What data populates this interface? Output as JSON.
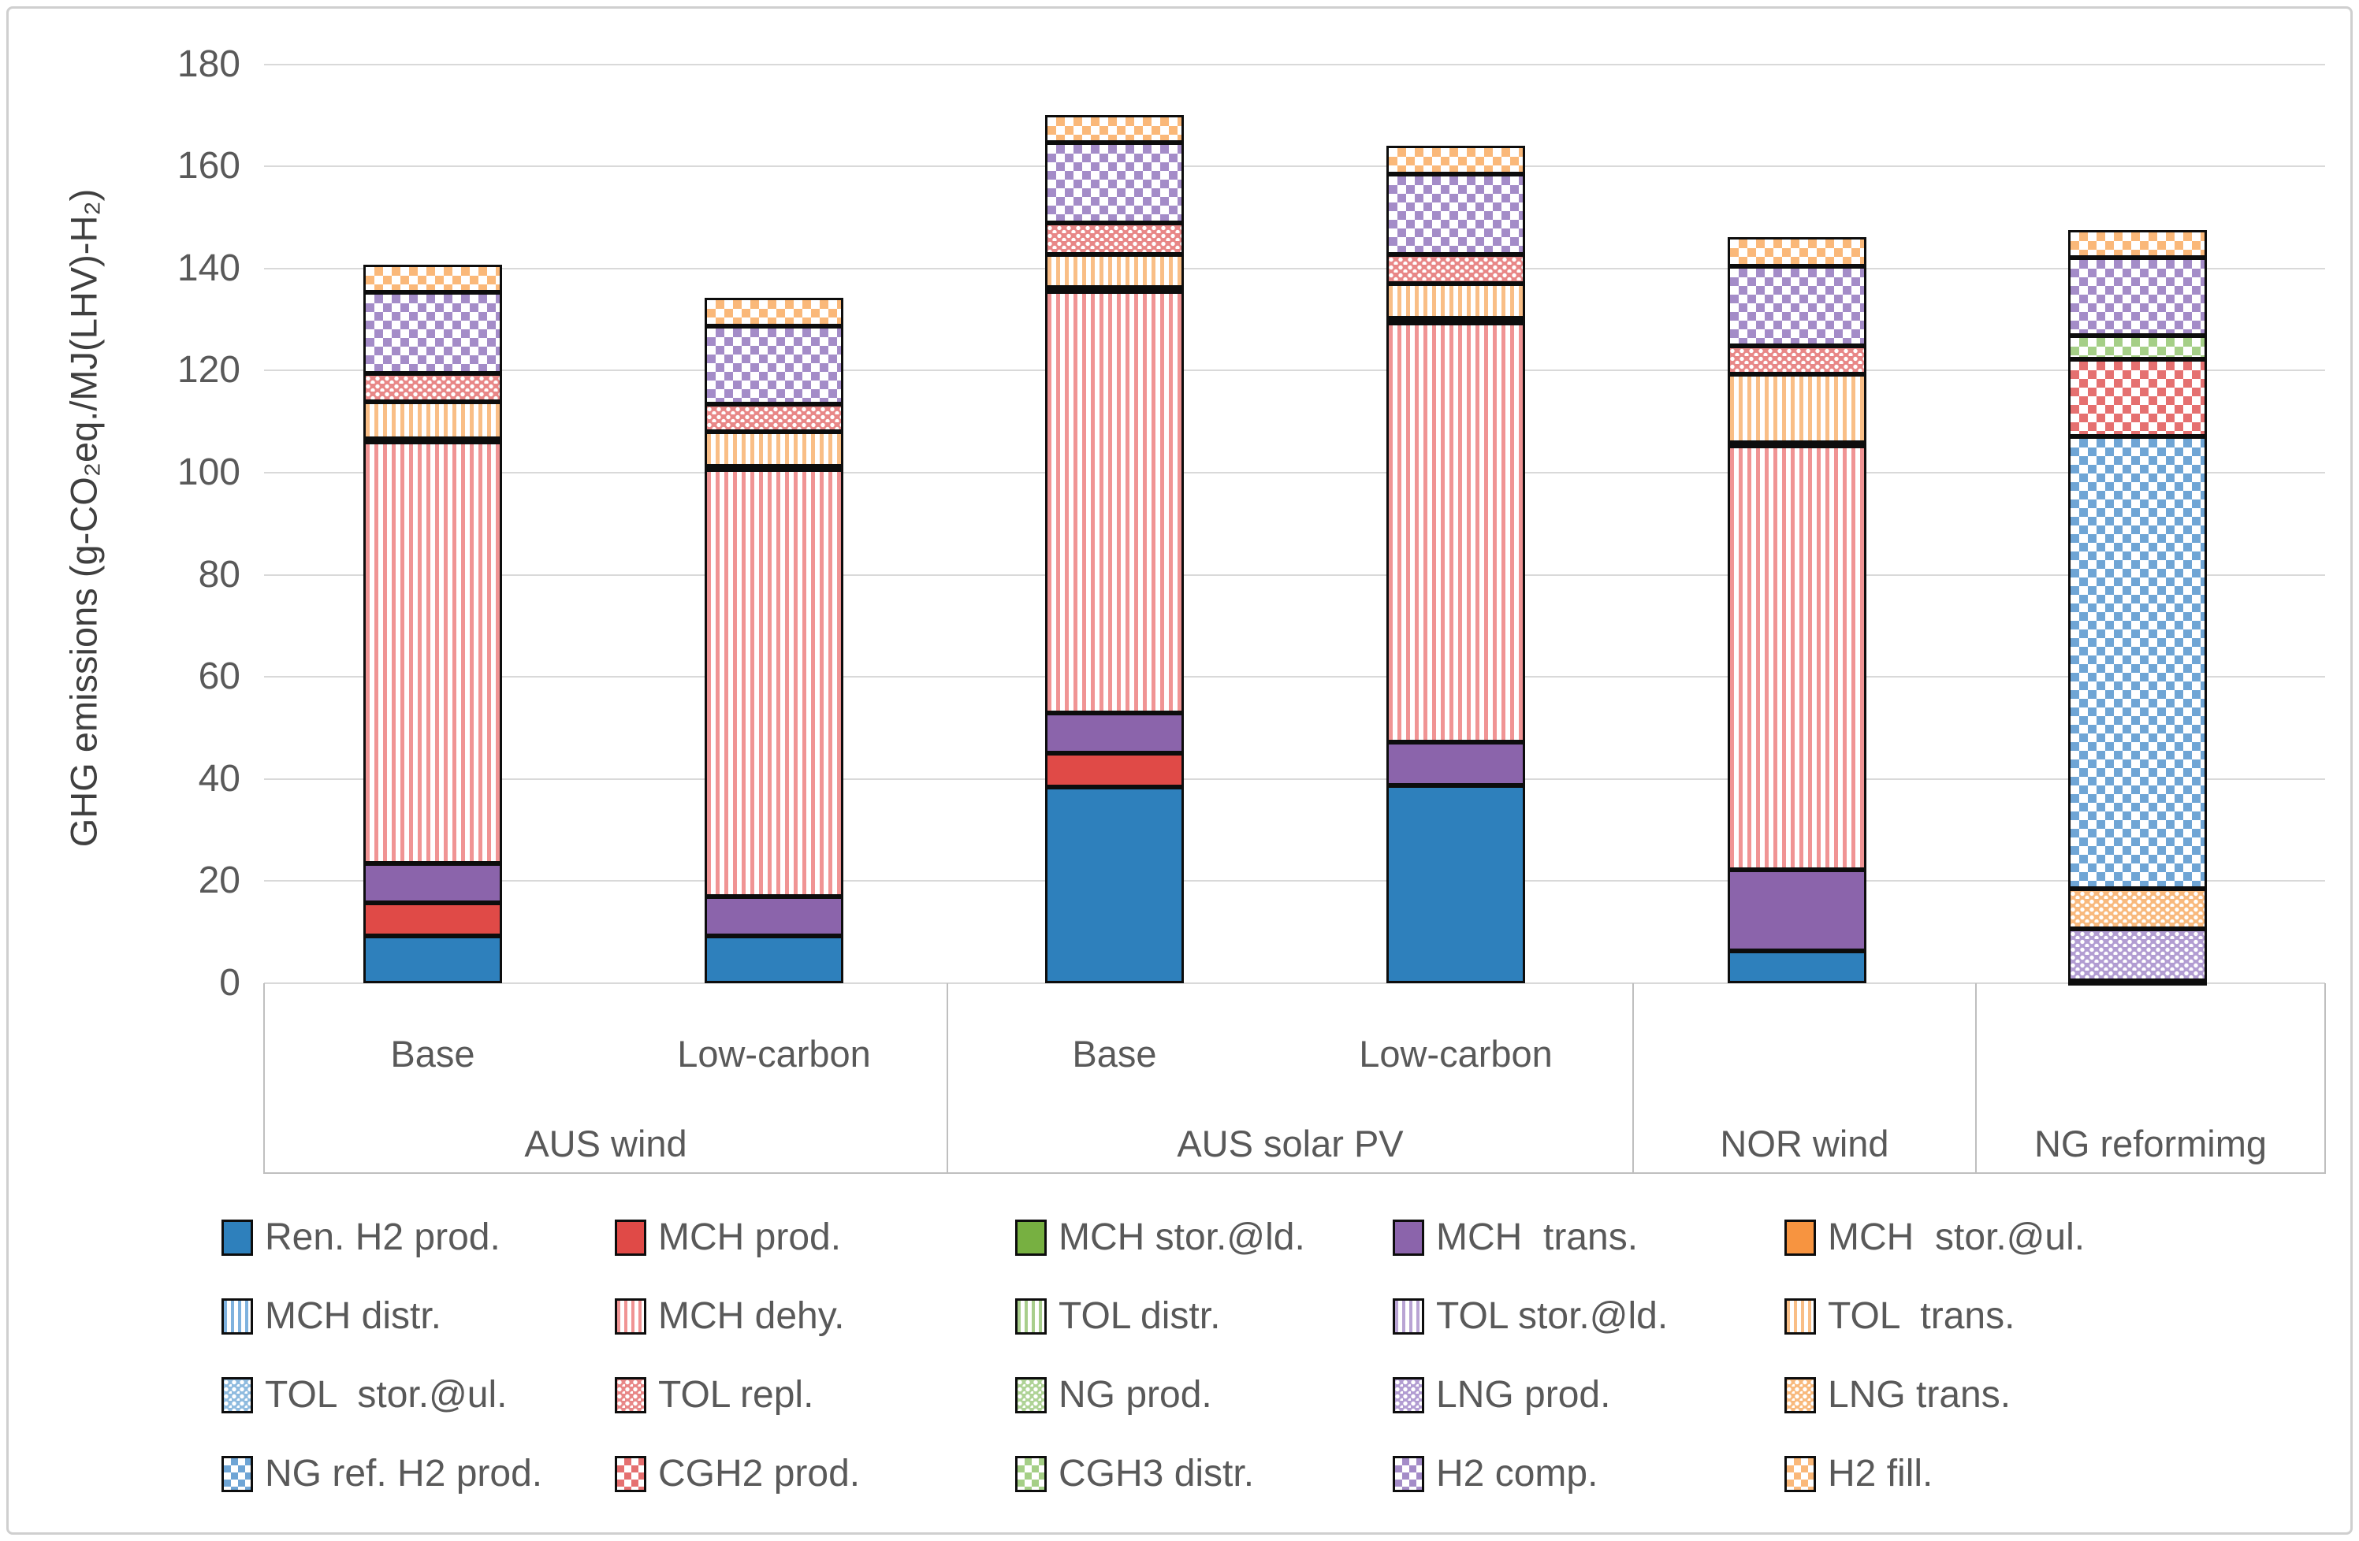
{
  "y_axis": {
    "title": "GHG emissions (g-CO₂eq./MJ(LHV)-H₂)",
    "min": 0,
    "max": 180,
    "step": 20,
    "tick_labels": [
      "0",
      "20",
      "40",
      "60",
      "80",
      "100",
      "120",
      "140",
      "160",
      "180"
    ]
  },
  "x_axis": {
    "groups": [
      {
        "label": "AUS wind",
        "sub_labels": [
          "Base",
          "Low-carbon"
        ]
      },
      {
        "label": "AUS solar PV",
        "sub_labels": [
          "Base",
          "Low-carbon"
        ]
      },
      {
        "label": "NOR wind",
        "sub_labels": []
      },
      {
        "label": "NG reformimg",
        "sub_labels": []
      }
    ]
  },
  "chart_data": {
    "type": "bar",
    "stacked": true,
    "title": "",
    "xlabel": "",
    "ylabel": "GHG emissions (g-CO₂eq./MJ(LHV)-H₂)",
    "ylim": [
      0,
      180
    ],
    "grid": true,
    "legend_position": "bottom",
    "categories": [
      "AUS wind Base",
      "AUS wind Low-carbon",
      "AUS solar PV Base",
      "AUS solar PV Low-carbon",
      "NOR wind",
      "NG reformimg"
    ],
    "totals": [
      140.7,
      134.2,
      170.0,
      164.0,
      146.2,
      147.6
    ],
    "series": [
      {
        "name": "Ren. H2 prod.",
        "pattern": "solid",
        "color": "#2E80BC",
        "values": [
          9.2,
          9.2,
          38.5,
          38.8,
          6.4,
          0
        ]
      },
      {
        "name": "MCH prod.",
        "pattern": "solid",
        "color": "#E04A47",
        "values": [
          6.5,
          0,
          6.5,
          0,
          0,
          0
        ]
      },
      {
        "name": "MCH stor.@ld.",
        "pattern": "solid",
        "color": "#77B041",
        "values": [
          0,
          0,
          0,
          0,
          0,
          0
        ]
      },
      {
        "name": "MCH  trans.",
        "pattern": "solid",
        "color": "#8B64AB",
        "values": [
          7.8,
          7.8,
          8.0,
          8.4,
          15.8,
          0
        ]
      },
      {
        "name": "MCH  stor.@ul.",
        "pattern": "solid",
        "color": "#F79440",
        "values": [
          0,
          0,
          0,
          0,
          0,
          0
        ]
      },
      {
        "name": "MCH distr.",
        "pattern": "vstripe",
        "color": "#7FB2DE",
        "values": [
          0,
          0,
          0,
          0,
          0,
          0
        ]
      },
      {
        "name": "MCH dehy.",
        "pattern": "vstripe",
        "color": "#F09494",
        "values": [
          82.5,
          83.7,
          82.5,
          82.1,
          83.0,
          0
        ]
      },
      {
        "name": "TOL distr.",
        "pattern": "vstripe",
        "color": "#A8CE8C",
        "values": [
          0.6,
          0.6,
          0.8,
          0.9,
          0.7,
          0
        ]
      },
      {
        "name": "TOL stor.@ld.",
        "pattern": "vstripe",
        "color": "#B9A4D4",
        "values": [
          0,
          0,
          0,
          0,
          0,
          0
        ]
      },
      {
        "name": "TOL  trans.",
        "pattern": "vstripe",
        "color": "#F9BE86",
        "values": [
          7.3,
          6.8,
          6.5,
          6.8,
          13.4,
          0
        ]
      },
      {
        "name": "TOL  stor.@ul.",
        "pattern": "dots",
        "color": "#8FBBDF",
        "values": [
          0,
          0,
          0,
          0,
          0,
          0
        ]
      },
      {
        "name": "TOL repl.",
        "pattern": "dots",
        "color": "#E88787",
        "values": [
          5.5,
          5.4,
          6.1,
          5.7,
          5.5,
          0
        ]
      },
      {
        "name": "NG prod.",
        "pattern": "dots",
        "color": "#AFD396",
        "values": [
          0,
          0,
          0,
          0,
          0,
          0.4
        ]
      },
      {
        "name": "LNG prod.",
        "pattern": "dots",
        "color": "#B29DD2",
        "values": [
          0,
          0,
          0,
          0,
          0,
          10.3
        ]
      },
      {
        "name": "LNG trans.",
        "pattern": "dots",
        "color": "#F8B97D",
        "values": [
          0,
          0,
          0,
          0,
          0,
          7.8
        ]
      },
      {
        "name": "NG ref. H2 prod.",
        "pattern": "checker",
        "color": "#6FA5D5",
        "values": [
          0,
          0,
          0,
          0,
          0,
          88.6
        ]
      },
      {
        "name": "CGH2 prod.",
        "pattern": "checker",
        "color": "#E57070",
        "values": [
          0,
          0,
          0,
          0,
          0,
          15.1
        ]
      },
      {
        "name": "CGH3 distr.",
        "pattern": "checker",
        "color": "#A5CF87",
        "values": [
          0,
          0,
          0,
          0,
          0,
          4.6
        ]
      },
      {
        "name": "H2 comp.",
        "pattern": "checker",
        "color": "#A48CC8",
        "values": [
          16.0,
          15.2,
          15.7,
          15.8,
          15.7,
          15.3
        ]
      },
      {
        "name": "H2 fill.",
        "pattern": "checker",
        "color": "#FAB879",
        "values": [
          5.3,
          5.5,
          5.4,
          5.5,
          5.7,
          5.5
        ]
      }
    ]
  },
  "colors": {
    "gridline": "#d9d9d9",
    "axis_line": "#bfbfbf",
    "text": "#595959",
    "segment_border": "#0d0d0d"
  }
}
